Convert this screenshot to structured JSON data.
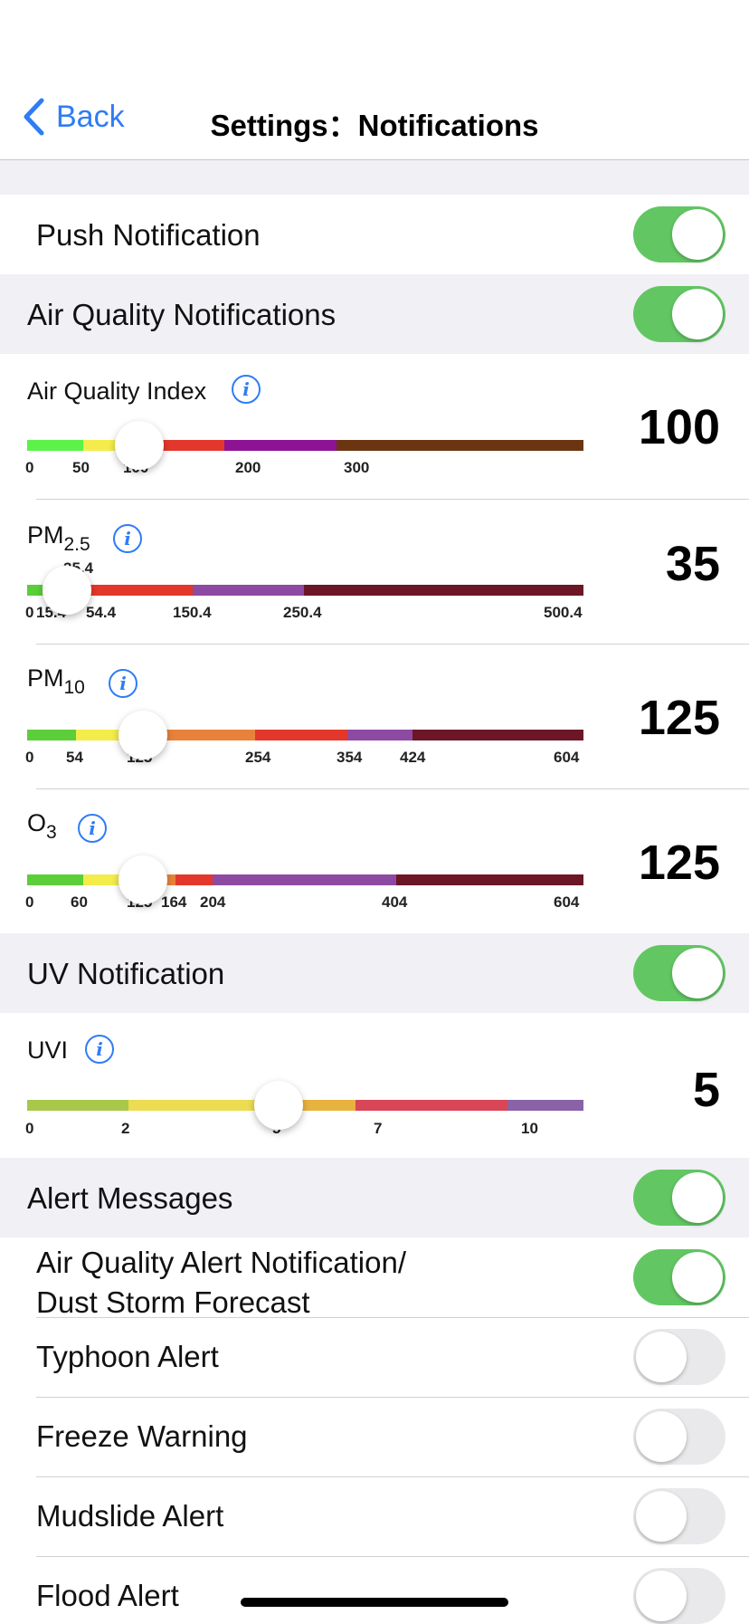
{
  "nav": {
    "back_label": "Back",
    "title": "Settings：Notifications"
  },
  "rows": {
    "push": {
      "label": "Push Notification",
      "on": true
    },
    "air_quality": {
      "label": "Air Quality Notifications",
      "on": true
    },
    "uv": {
      "label": "UV Notification",
      "on": true
    },
    "alerts": {
      "label": "Alert Messages",
      "on": true
    },
    "aq_alert": {
      "label_line1": "Air Quality Alert Notification/",
      "label_line2": "Dust Storm Forecast",
      "on": true
    },
    "typhoon": {
      "label": "Typhoon Alert",
      "on": false
    },
    "freeze": {
      "label": "Freeze Warning",
      "on": false
    },
    "mudslide": {
      "label": "Mudslide Alert",
      "on": false
    },
    "flood": {
      "label": "Flood Alert",
      "on": false
    }
  },
  "sliders": {
    "aqi": {
      "label": "Air Quality Index",
      "sub": "",
      "info_icon": "info-icon",
      "value": "100",
      "ticks": [
        "0",
        "50",
        "100",
        "200",
        "300"
      ],
      "colors": [
        "#5bf24a",
        "#f3ec4a",
        "#f7a23c",
        "#e4372b",
        "#8e1294",
        "#6b3511"
      ]
    },
    "pm25": {
      "label": "PM",
      "sub": "2.5",
      "info_icon": "info-icon",
      "value": "35",
      "ticks": [
        "0",
        "15.4",
        "35.4",
        "54.4",
        "150.4",
        "250.4",
        "500.4"
      ],
      "colors": [
        "#5bce3a",
        "#f3ec4a",
        "#f7a23c",
        "#e4372b",
        "#8d4aa3",
        "#6d1625"
      ]
    },
    "pm10": {
      "label": "PM",
      "sub": "10",
      "info_icon": "info-icon",
      "value": "125",
      "ticks": [
        "0",
        "54",
        "125",
        "254",
        "354",
        "424",
        "604"
      ],
      "colors": [
        "#5bce3a",
        "#f3ec4a",
        "#e8823a",
        "#e4372b",
        "#8d4aa3",
        "#6d1625"
      ]
    },
    "o3": {
      "label": "O",
      "sub": "3",
      "info_icon": "info-icon",
      "value": "125",
      "ticks": [
        "0",
        "60",
        "125",
        "164",
        "204",
        "404",
        "604"
      ],
      "colors": [
        "#5bce3a",
        "#f3ec4a",
        "#e8823a",
        "#e4372b",
        "#8d4aa3",
        "#6d1625"
      ]
    },
    "uvi": {
      "label": "UVI",
      "sub": "",
      "info_icon": "info-icon",
      "value": "5",
      "ticks": [
        "0",
        "2",
        "5",
        "7",
        "10"
      ],
      "colors": [
        "#a8c84a",
        "#ecdc52",
        "#e8b23e",
        "#d84657",
        "#8a62a8"
      ]
    }
  }
}
